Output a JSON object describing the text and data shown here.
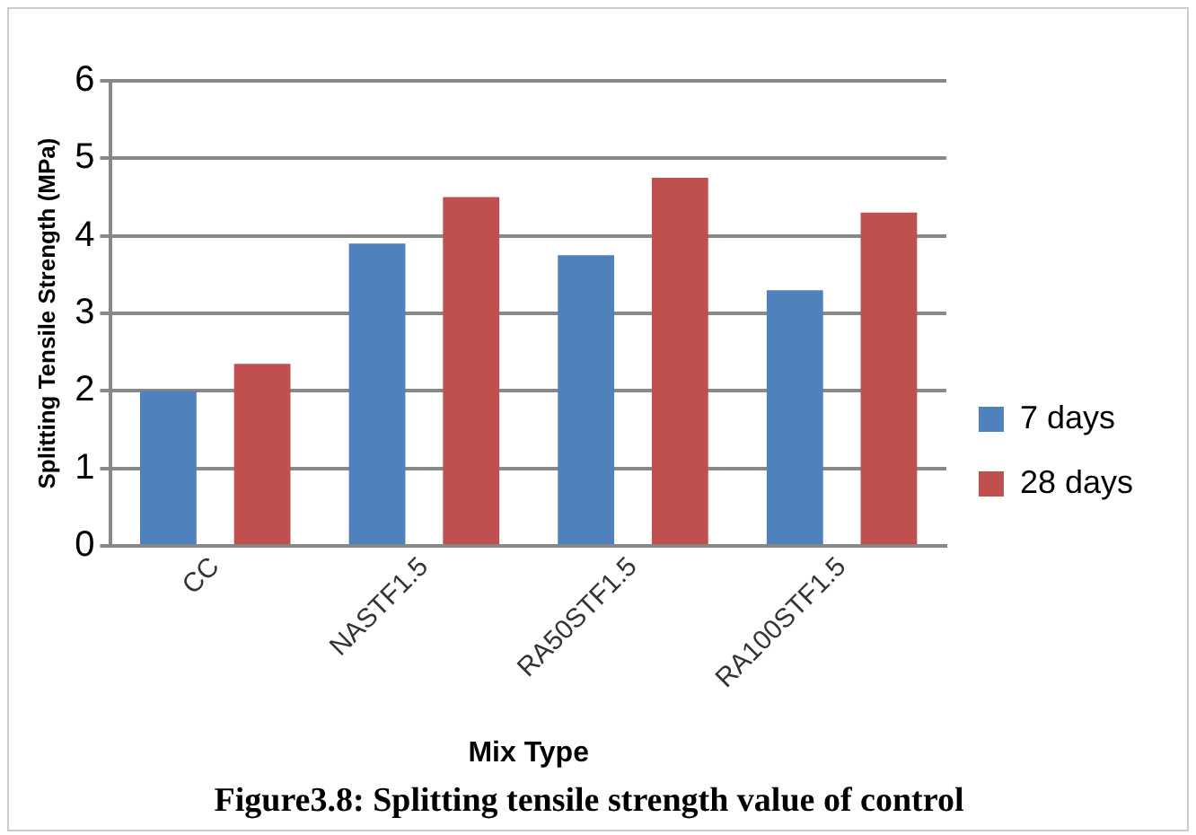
{
  "chart_data": {
    "type": "bar",
    "title": "Figure3.8: Splitting tensile strength value of control",
    "xlabel": "Mix Type",
    "ylabel": "Splitting Tensile Strength (MPa)",
    "categories": [
      "CC",
      "NASTF1.5",
      "RA50STF1.5",
      "RA100STF1.5"
    ],
    "series": [
      {
        "name": "7 days",
        "color": "#4f81bd",
        "values": [
          2.0,
          3.9,
          3.75,
          3.3
        ]
      },
      {
        "name": "28 days",
        "color": "#c0504d",
        "values": [
          2.35,
          4.5,
          4.75,
          4.3
        ]
      }
    ],
    "ylim": [
      0,
      6
    ],
    "yticks": [
      0,
      1,
      2,
      3,
      4,
      5,
      6
    ],
    "grid": "y",
    "legend": "right"
  }
}
